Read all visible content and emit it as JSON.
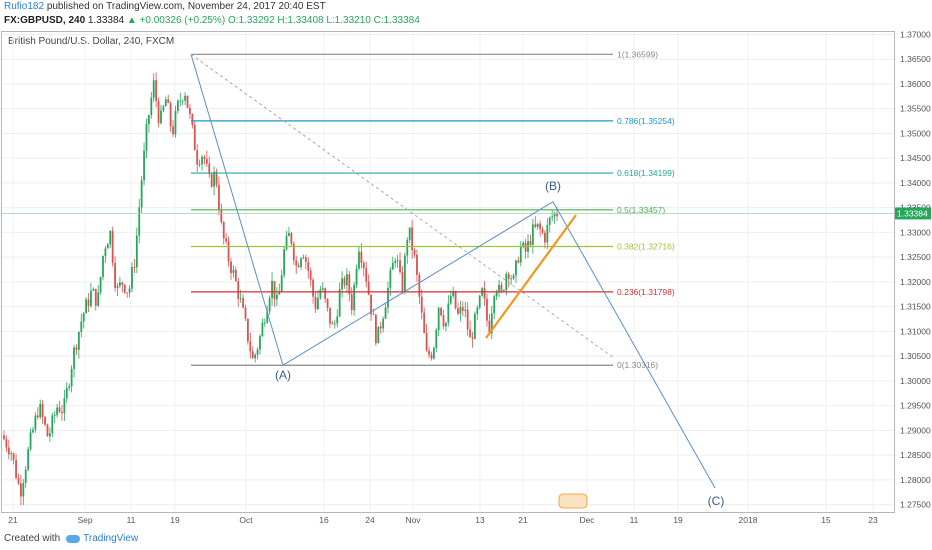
{
  "header": {
    "user": "Rufio182",
    "published_text": "published on TradingView.com, November 24, 2017 20:40 EST",
    "symbol": "FX:GBPUSD, 240",
    "last": "1.33384",
    "change": "▲ +0.00326 (+0.25%)",
    "ohlc": "O:1.33292 H:1.33408 L:1.33210 C:1.33384"
  },
  "chart_title": "British Pound/U.S. Dollar, 240, FXCM",
  "footer": {
    "created_with": "Created with",
    "brand": "TradingView"
  },
  "colors": {
    "up": "#26a65b",
    "down": "#d9534f",
    "fib_0": "#888888",
    "fib_0236": "#d32f2f",
    "fib_0382": "#9bc43a",
    "fib_05": "#4caf50",
    "fib_0618": "#26a69a",
    "fib_0786": "#2196c9",
    "fib_1": "#888888",
    "trend": "#f7941d",
    "wave": "#5b8fc9"
  },
  "chart_data": {
    "type": "candlestick",
    "symbol": "GBPUSD",
    "ylim": [
      1.2735,
      1.3705
    ],
    "y_ticks": [
      "1.37000",
      "1.36500",
      "1.36000",
      "1.35500",
      "1.35000",
      "1.34500",
      "1.34000",
      "1.33500",
      "1.33000",
      "1.32500",
      "1.32000",
      "1.31500",
      "1.31000",
      "1.30500",
      "1.30000",
      "1.29500",
      "1.29000",
      "1.28500",
      "1.28000",
      "1.27500"
    ],
    "x_ticks": [
      "21",
      "Sep",
      "11",
      "19",
      "Oct",
      "16",
      "24",
      "Nov",
      "13",
      "21",
      "Dec",
      "11",
      "19",
      "2018",
      "15",
      "23"
    ],
    "current_price": "1.33384",
    "current_price_value": 1.33384,
    "fib_levels": [
      {
        "label": "1(1.36599)",
        "value": 1.36599
      },
      {
        "label": "0.786(1.35254)",
        "value": 1.35254
      },
      {
        "label": "0.618(1.34199)",
        "value": 1.34199
      },
      {
        "label": "0.5(1.33457)",
        "value": 1.33457
      },
      {
        "label": "0.382(1.32716)",
        "value": 1.32716
      },
      {
        "label": "0.236(1.31798)",
        "value": 1.31798
      },
      {
        "label": "0(1.30316)",
        "value": 1.30316
      }
    ],
    "wave_labels": [
      "(A)",
      "(B)",
      "(C)"
    ],
    "price_path": [
      [
        0,
        1.289
      ],
      [
        0.03,
        1.286
      ],
      [
        0.06,
        1.2775
      ],
      [
        0.09,
        1.287
      ],
      [
        0.12,
        1.295
      ],
      [
        0.15,
        1.2885
      ],
      [
        0.18,
        1.295
      ],
      [
        0.2,
        1.294
      ],
      [
        0.23,
        1.305
      ],
      [
        0.26,
        1.313
      ],
      [
        0.29,
        1.318
      ],
      [
        0.31,
        1.316
      ],
      [
        0.33,
        1.327
      ],
      [
        0.35,
        1.33
      ],
      [
        0.37,
        1.318
      ],
      [
        0.39,
        1.32
      ],
      [
        0.41,
        1.318
      ],
      [
        0.43,
        1.325
      ],
      [
        0.45,
        1.34
      ],
      [
        0.47,
        1.352
      ],
      [
        0.49,
        1.36
      ],
      [
        0.51,
        1.352
      ],
      [
        0.53,
        1.357
      ],
      [
        0.55,
        1.35
      ],
      [
        0.57,
        1.356
      ],
      [
        0.59,
        1.359
      ],
      [
        0.61,
        1.352
      ],
      [
        0.63,
        1.345
      ],
      [
        0.65,
        1.346
      ],
      [
        0.67,
        1.34
      ],
      [
        0.69,
        1.342
      ],
      [
        0.71,
        1.33
      ],
      [
        0.73,
        1.325
      ],
      [
        0.75,
        1.321
      ],
      [
        0.77,
        1.316
      ],
      [
        0.79,
        1.31
      ],
      [
        0.81,
        1.304
      ],
      [
        0.83,
        1.308
      ],
      [
        0.85,
        1.314
      ],
      [
        0.87,
        1.32
      ],
      [
        0.89,
        1.315
      ],
      [
        0.91,
        1.326
      ],
      [
        0.93,
        1.33
      ],
      [
        0.95,
        1.323
      ],
      [
        0.97,
        1.327
      ],
      [
        0.99,
        1.322
      ],
      [
        1.01,
        1.315
      ],
      [
        1.03,
        1.319
      ],
      [
        1.05,
        1.314
      ],
      [
        1.07,
        1.31
      ],
      [
        1.09,
        1.318
      ],
      [
        1.11,
        1.321
      ],
      [
        1.13,
        1.315
      ],
      [
        1.15,
        1.328
      ],
      [
        1.17,
        1.323
      ],
      [
        1.19,
        1.315
      ],
      [
        1.21,
        1.308
      ],
      [
        1.23,
        1.314
      ],
      [
        1.25,
        1.32
      ],
      [
        1.27,
        1.326
      ],
      [
        1.29,
        1.318
      ],
      [
        1.31,
        1.331
      ],
      [
        1.33,
        1.325
      ],
      [
        1.35,
        1.315
      ],
      [
        1.37,
        1.305
      ],
      [
        1.39,
        1.306
      ],
      [
        1.41,
        1.316
      ],
      [
        1.43,
        1.311
      ],
      [
        1.45,
        1.318
      ],
      [
        1.47,
        1.313
      ],
      [
        1.49,
        1.315
      ],
      [
        1.51,
        1.308
      ],
      [
        1.53,
        1.313
      ],
      [
        1.55,
        1.318
      ],
      [
        1.57,
        1.31
      ],
      [
        1.59,
        1.32
      ],
      [
        1.61,
        1.317
      ],
      [
        1.63,
        1.323
      ],
      [
        1.65,
        1.32
      ],
      [
        1.67,
        1.327
      ],
      [
        1.69,
        1.326
      ],
      [
        1.71,
        1.33
      ],
      [
        1.73,
        1.331
      ],
      [
        1.75,
        1.329
      ],
      [
        1.77,
        1.333
      ],
      [
        1.79,
        1.334
      ]
    ]
  }
}
